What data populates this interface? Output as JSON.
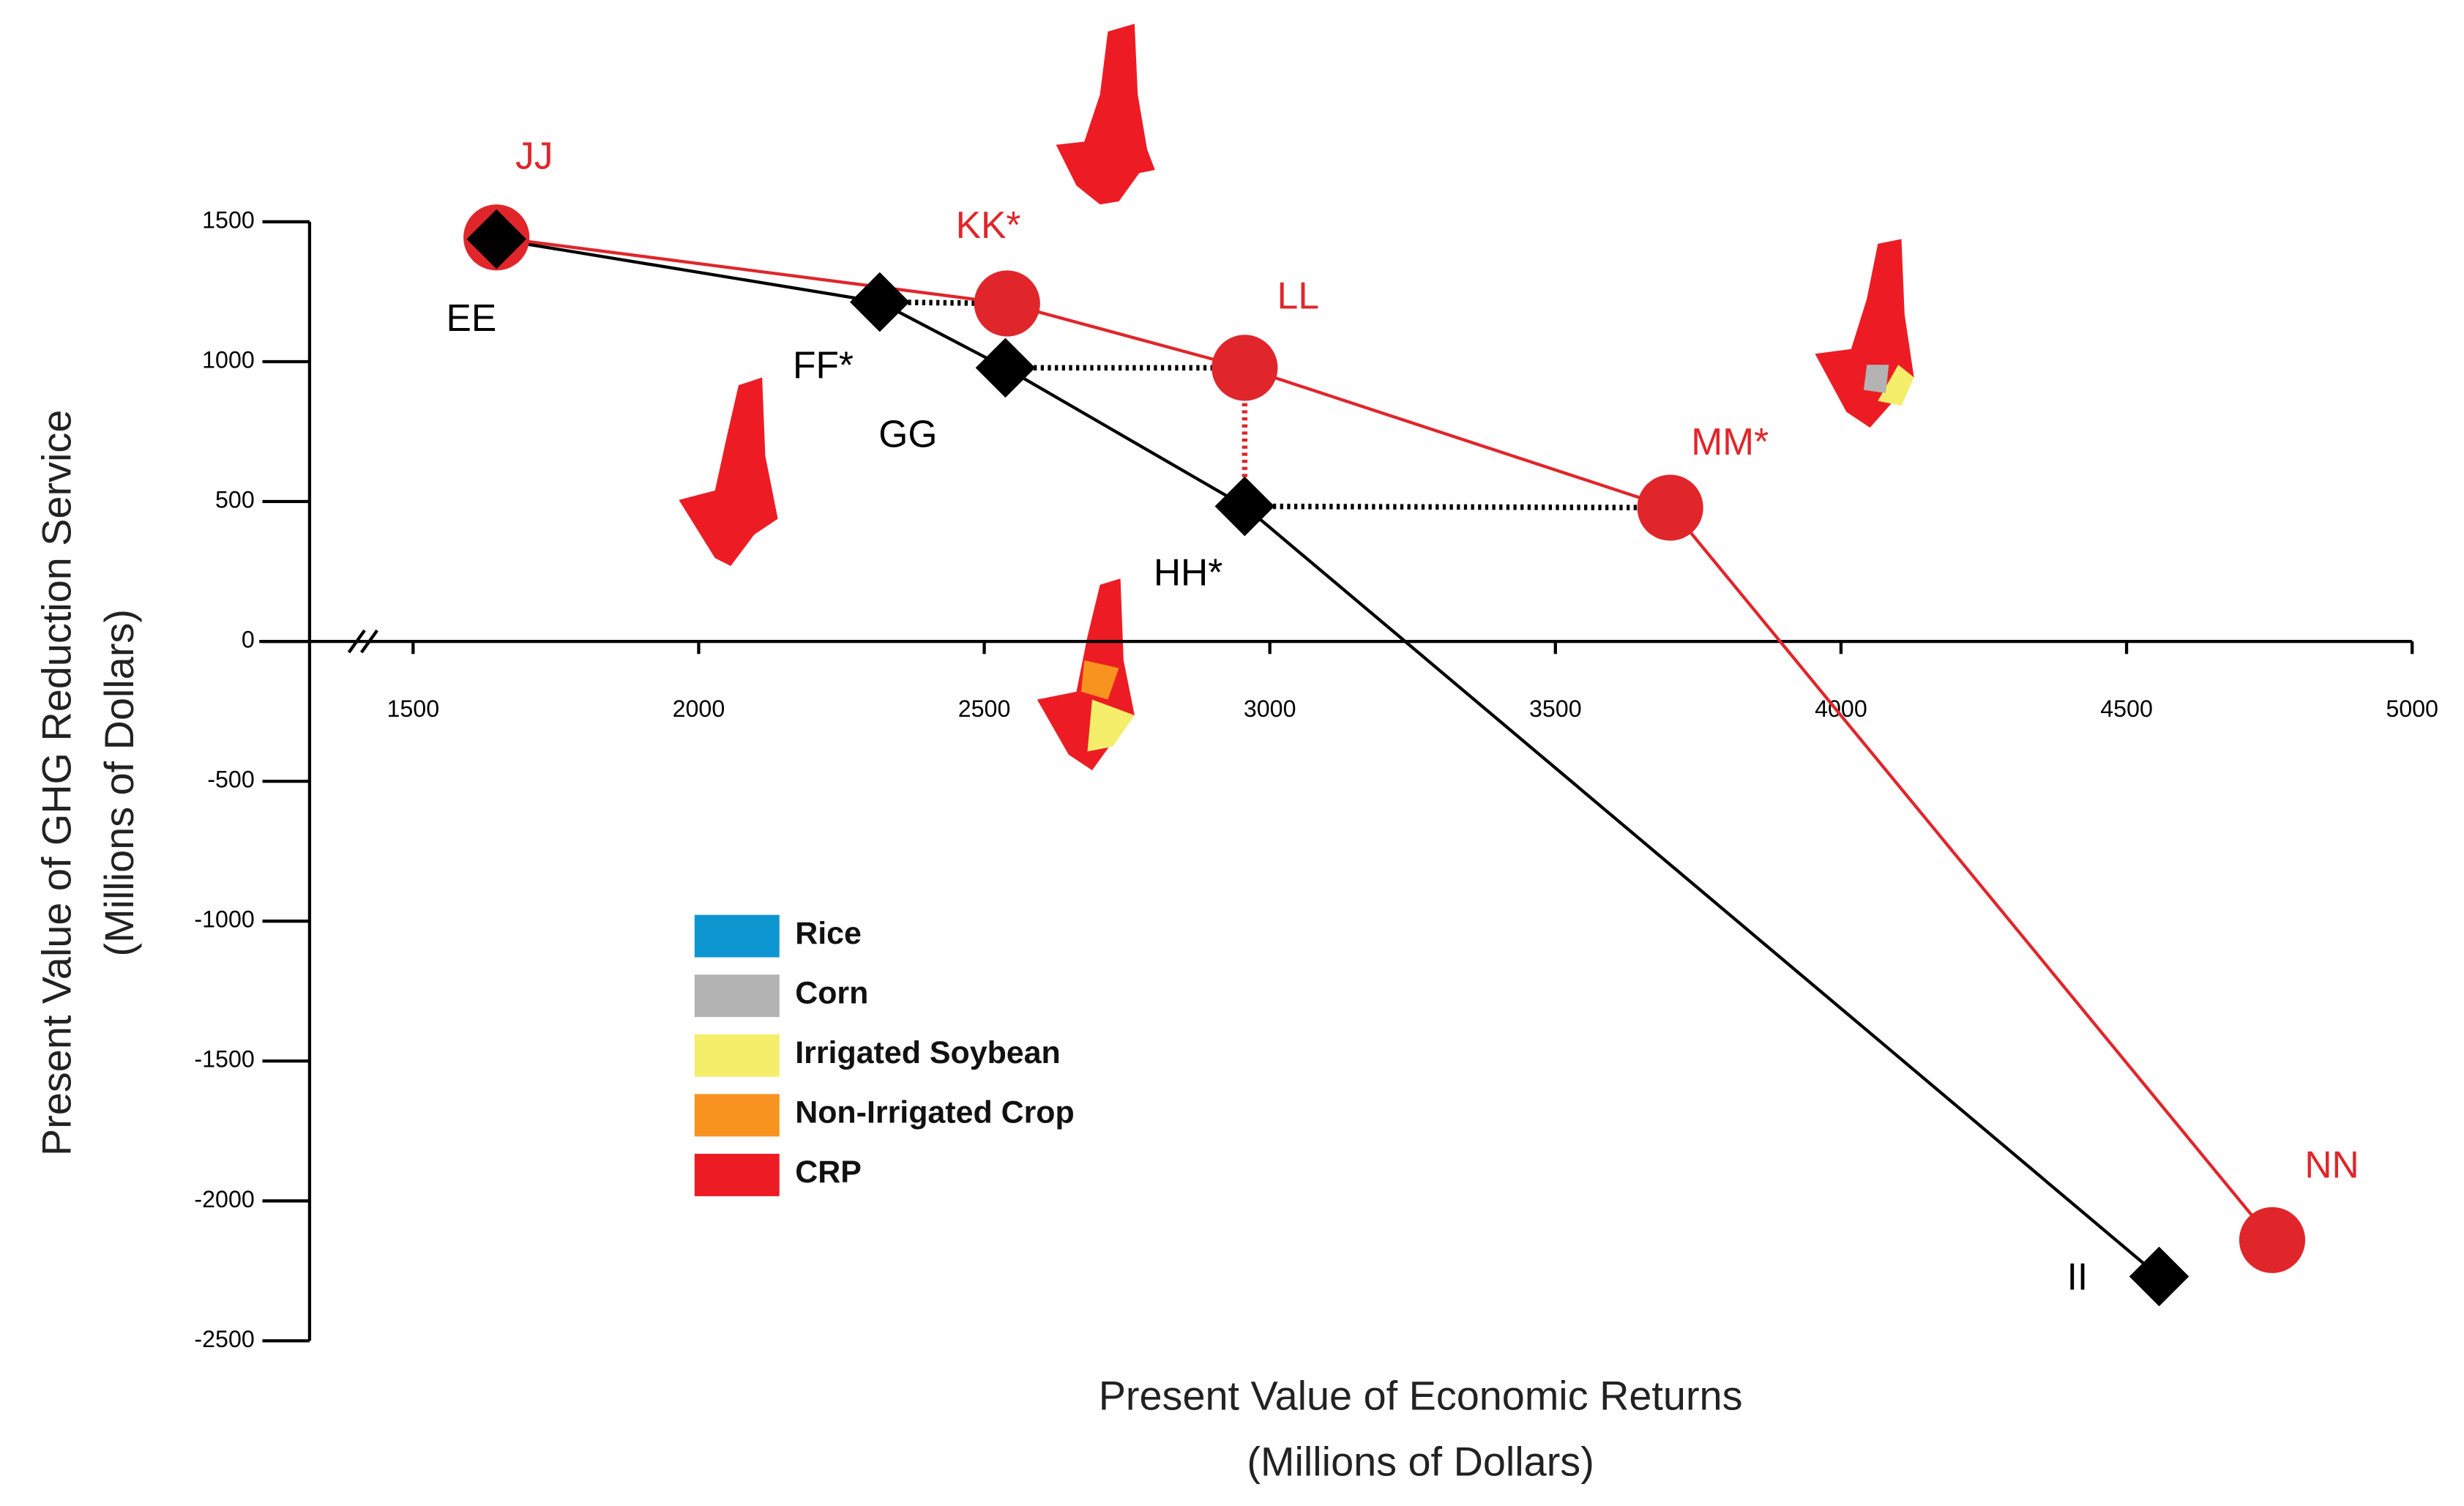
{
  "chart_data": {
    "type": "line",
    "x_label": [
      "Present Value of Economic Returns",
      "(Millions of Dollars)"
    ],
    "y_label": [
      "Present Value of GHG Reduction Service",
      "(Millions of Dollars)"
    ],
    "xlim": [
      1327,
      5000
    ],
    "ylim": [
      -2500,
      1500
    ],
    "xticks": [
      1500,
      2000,
      2500,
      3000,
      3500,
      4000,
      4500,
      5000
    ],
    "yticks": [
      1500,
      1000,
      500,
      0,
      -500,
      -1000,
      -1500,
      -2000,
      -2500
    ],
    "series": [
      {
        "color": "#000000",
        "marker": "diamond",
        "x": [
          1646,
          2317,
          2537,
          2956,
          4557
        ],
        "values": [
          1438,
          1213,
          978,
          483,
          -2270
        ],
        "labels": [
          "EE",
          "FF*",
          "GG",
          "HH*",
          "II"
        ]
      },
      {
        "color": "#e0262b",
        "marker": "circle",
        "x": [
          1646,
          2540,
          2956,
          3701,
          4755
        ],
        "values": [
          1444,
          1208,
          978,
          478,
          -2140
        ],
        "labels": [
          "JJ",
          "KK*",
          "LL",
          "MM*",
          "NN"
        ]
      }
    ],
    "legend": [
      {
        "name": "Rice",
        "color": "#0e96d1"
      },
      {
        "name": "Corn",
        "color": "#b3b3b3"
      },
      {
        "name": "Irrigated Soybean",
        "color": "#f4ee6b"
      },
      {
        "name": "Non-Irrigated Crop",
        "color": "#f7931e"
      },
      {
        "name": "CRP",
        "color": "#ed1c24"
      }
    ]
  }
}
